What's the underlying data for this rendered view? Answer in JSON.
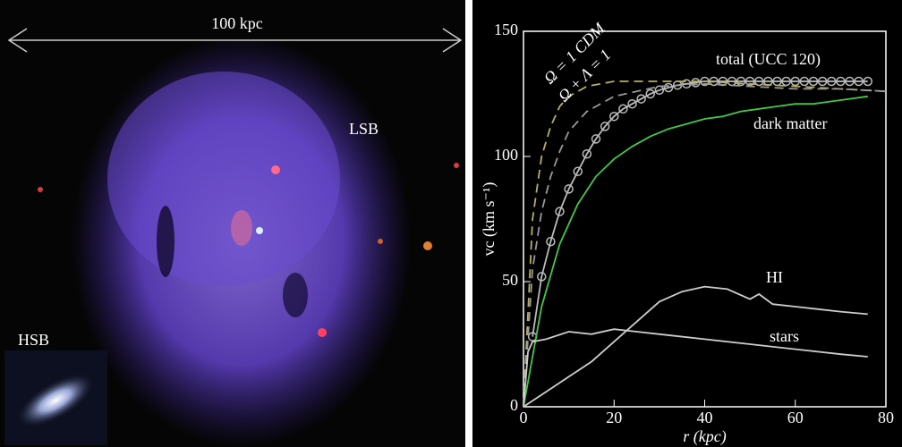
{
  "image_labels": {
    "scale": "100 kpc",
    "lsb": "LSB",
    "hsb": "HSB"
  },
  "chart_data": {
    "type": "line",
    "xlabel": "r (kpc)",
    "ylabel": "vc (km s⁻¹)",
    "xlim": [
      0,
      80
    ],
    "xticks": [
      0,
      20,
      40,
      60,
      80
    ],
    "ylim": [
      0,
      150
    ],
    "yticks": [
      0,
      50,
      100,
      150
    ],
    "legend": false,
    "grid": false,
    "series": [
      {
        "name": "total (UCC 120)",
        "color": "#bbbbbb",
        "marker": "circle",
        "x": [
          2,
          4,
          6,
          8,
          10,
          12,
          14,
          16,
          18,
          20,
          22,
          24,
          26,
          28,
          30,
          32,
          34,
          36,
          38,
          40,
          42,
          44,
          46,
          48,
          50,
          52,
          54,
          56,
          58,
          60,
          62,
          64,
          66,
          68,
          70,
          72,
          74,
          76
        ],
        "values": [
          28,
          52,
          66,
          78,
          87,
          94,
          101,
          107,
          112,
          116,
          119,
          121,
          123,
          125,
          126.5,
          127.5,
          128.5,
          129,
          129.5,
          130,
          130,
          130,
          130,
          130,
          130,
          130,
          130,
          130,
          130,
          130,
          130,
          130,
          130,
          130,
          130,
          130,
          130,
          130
        ]
      },
      {
        "name": "dark matter",
        "color": "#44c844",
        "x": [
          0,
          4,
          8,
          12,
          16,
          20,
          24,
          28,
          32,
          36,
          40,
          44,
          48,
          52,
          56,
          60,
          64,
          68,
          72,
          76
        ],
        "values": [
          0,
          40,
          65,
          81,
          92,
          99,
          104,
          108,
          111,
          113,
          115,
          116,
          118,
          119,
          120,
          121,
          121,
          122,
          123,
          124
        ]
      },
      {
        "name": "Ω = 1 CDM",
        "color": "#b8b060",
        "dash": true,
        "x": [
          0,
          2,
          4,
          6,
          8,
          10,
          14,
          20,
          30,
          40,
          50,
          60,
          70,
          80
        ],
        "values": [
          0,
          75,
          100,
          112,
          120,
          124,
          128,
          130,
          130,
          130,
          129,
          128,
          127,
          126
        ]
      },
      {
        "name": "Ω + Λ = 1",
        "color": "#999999",
        "dash": true,
        "x": [
          0,
          2,
          4,
          6,
          8,
          10,
          14,
          20,
          30,
          40,
          50,
          60,
          70,
          80
        ],
        "values": [
          0,
          55,
          78,
          92,
          102,
          110,
          118,
          124,
          128,
          129,
          128,
          127,
          127,
          126
        ]
      },
      {
        "name": "HI",
        "color": "#cccccc",
        "x": [
          0,
          5,
          10,
          15,
          20,
          25,
          30,
          35,
          40,
          45,
          50,
          52,
          55,
          60,
          65,
          70,
          76
        ],
        "values": [
          0,
          6,
          12,
          18,
          26,
          34,
          42,
          46,
          48,
          47,
          43,
          45,
          41,
          40,
          39,
          38,
          37
        ]
      },
      {
        "name": "stars",
        "color": "#cccccc",
        "x": [
          0,
          1,
          2,
          5,
          10,
          15,
          20,
          25,
          30,
          40,
          50,
          60,
          70,
          76
        ],
        "values": [
          0,
          22,
          26,
          27,
          30,
          29,
          31,
          30,
          29,
          27,
          25,
          23,
          21,
          20
        ]
      }
    ]
  }
}
